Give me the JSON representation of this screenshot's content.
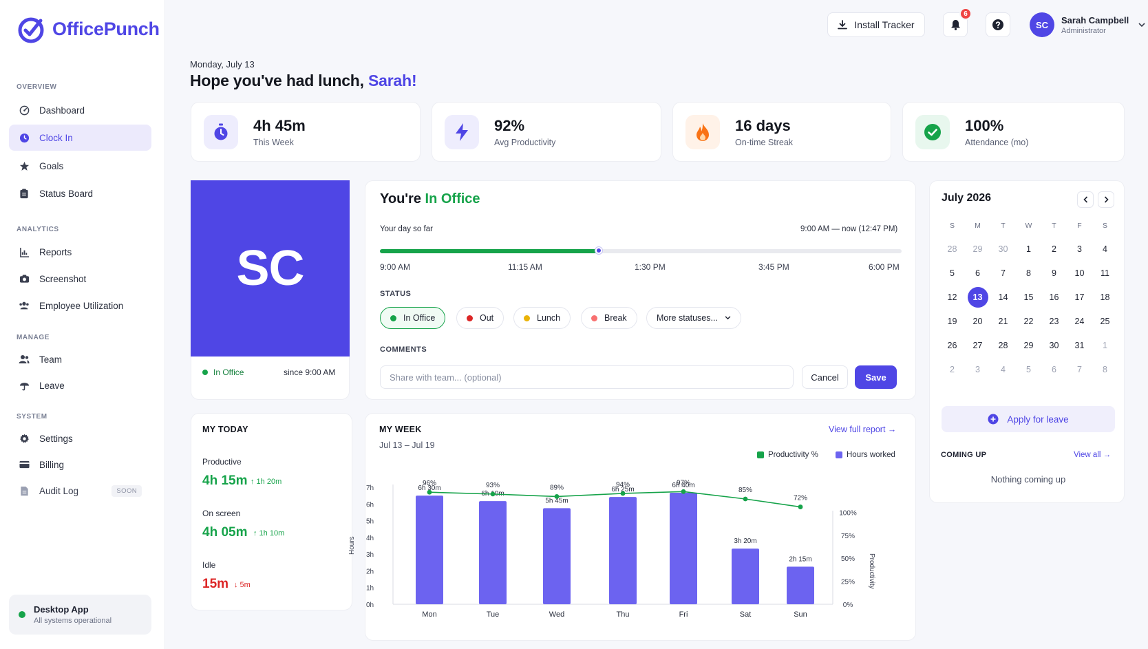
{
  "app": {
    "name": "OfficePunch",
    "brand_color": "#4f46e5"
  },
  "sidebar": {
    "sections": [
      {
        "label": "OVERVIEW",
        "items": [
          {
            "label": "Dashboard",
            "icon": "dashboard-gauge-icon",
            "active": false
          },
          {
            "label": "Clock In",
            "icon": "clock-icon",
            "active": true
          },
          {
            "label": "Goals",
            "icon": "star-icon",
            "active": false
          },
          {
            "label": "Status Board",
            "icon": "clipboard-icon",
            "active": false
          }
        ]
      },
      {
        "label": "ANALYTICS",
        "items": [
          {
            "label": "Reports",
            "icon": "bar-chart-icon"
          },
          {
            "label": "Screenshot",
            "icon": "camera-icon"
          },
          {
            "label": "Employee Utilization",
            "icon": "users-icon"
          }
        ]
      },
      {
        "label": "MANAGE",
        "items": [
          {
            "label": "Team",
            "icon": "team-icon"
          },
          {
            "label": "Leave",
            "icon": "umbrella-icon"
          }
        ]
      },
      {
        "label": "SYSTEM",
        "items": [
          {
            "label": "Settings",
            "icon": "gear-icon"
          },
          {
            "label": "Billing",
            "icon": "credit-card-icon"
          },
          {
            "label": "Audit Log",
            "icon": "document-icon",
            "badge": "SOON"
          }
        ]
      }
    ],
    "desktop_app": {
      "title": "Desktop App",
      "status": "All systems operational"
    }
  },
  "header": {
    "install_label": "Install Tracker",
    "notification_count": "6",
    "user": {
      "initials": "SC",
      "name": "Sarah Campbell",
      "role": "Administrator"
    }
  },
  "greeting": {
    "date": "Monday, July 13",
    "text": "Hope you've had lunch, ",
    "name": "Sarah!"
  },
  "stats": [
    {
      "value": "4h 45m",
      "label": "This Week",
      "icon": "stopwatch-icon",
      "color": "#4f46e5",
      "bg": "#eeedfd"
    },
    {
      "value": "92%",
      "label": "Avg Productivity",
      "icon": "lightning-icon",
      "color": "#4f46e5",
      "bg": "#eeedfd"
    },
    {
      "value": "16 days",
      "label": "On-time Streak",
      "icon": "flame-icon",
      "color": "#f97316",
      "bg": "#fff2e8"
    },
    {
      "value": "100%",
      "label": "Attendance (mo)",
      "icon": "check-circle-icon",
      "color": "#16a34a",
      "bg": "#e8f7ee"
    }
  ],
  "profile": {
    "initials": "SC",
    "status": "In Office",
    "since": "since 9:00 AM"
  },
  "office": {
    "title_prefix": "You're ",
    "title_status": "In Office",
    "day_label": "Your day so far",
    "range": "9:00 AM — now (12:47 PM)",
    "progress": 0.42,
    "ticks": [
      "9:00 AM",
      "11:15 AM",
      "1:30 PM",
      "3:45 PM",
      "6:00 PM"
    ],
    "status_label": "STATUS",
    "statuses": [
      {
        "label": "In Office",
        "color": "#16a34a",
        "selected": true
      },
      {
        "label": "Out",
        "color": "#dc2626",
        "selected": false
      },
      {
        "label": "Lunch",
        "color": "#eab308",
        "selected": false
      },
      {
        "label": "Break",
        "color": "#f87171",
        "selected": false
      }
    ],
    "more_statuses": "More statuses...",
    "comments_label": "COMMENTS",
    "comment_placeholder": "Share with team... (optional)",
    "cancel_label": "Cancel",
    "save_label": "Save"
  },
  "calendar": {
    "title": "July 2026",
    "weekdays": [
      "S",
      "M",
      "T",
      "W",
      "T",
      "F",
      "S"
    ],
    "weeks": [
      [
        {
          "d": "28",
          "out": true
        },
        {
          "d": "29",
          "out": true
        },
        {
          "d": "30",
          "out": true
        },
        {
          "d": "1"
        },
        {
          "d": "2"
        },
        {
          "d": "3"
        },
        {
          "d": "4"
        }
      ],
      [
        {
          "d": "5"
        },
        {
          "d": "6"
        },
        {
          "d": "7"
        },
        {
          "d": "8"
        },
        {
          "d": "9"
        },
        {
          "d": "10"
        },
        {
          "d": "11"
        }
      ],
      [
        {
          "d": "12"
        },
        {
          "d": "13",
          "today": true
        },
        {
          "d": "14"
        },
        {
          "d": "15"
        },
        {
          "d": "16"
        },
        {
          "d": "17"
        },
        {
          "d": "18"
        }
      ],
      [
        {
          "d": "19"
        },
        {
          "d": "20"
        },
        {
          "d": "21"
        },
        {
          "d": "22"
        },
        {
          "d": "23"
        },
        {
          "d": "24"
        },
        {
          "d": "25"
        }
      ],
      [
        {
          "d": "26"
        },
        {
          "d": "27"
        },
        {
          "d": "28"
        },
        {
          "d": "29"
        },
        {
          "d": "30"
        },
        {
          "d": "31"
        },
        {
          "d": "1",
          "out": true
        }
      ],
      [
        {
          "d": "2",
          "out": true
        },
        {
          "d": "3",
          "out": true
        },
        {
          "d": "4",
          "out": true
        },
        {
          "d": "5",
          "out": true
        },
        {
          "d": "6",
          "out": true
        },
        {
          "d": "7",
          "out": true
        },
        {
          "d": "8",
          "out": true
        }
      ]
    ],
    "apply_leave": "Apply for leave",
    "coming_up": "COMING UP",
    "view_all": "View all →",
    "nothing": "Nothing coming up"
  },
  "my_today": {
    "title": "MY TODAY",
    "rows": [
      {
        "label": "Productive",
        "value": "4h 15m",
        "delta": "↑ 1h 20m",
        "color": "#16a34a"
      },
      {
        "label": "On screen",
        "value": "4h 05m",
        "delta": "↑ 1h 10m",
        "color": "#16a34a"
      },
      {
        "label": "Idle",
        "value": "15m",
        "delta": "↓ 5m",
        "color": "#dc2626"
      }
    ]
  },
  "my_week": {
    "title": "MY WEEK",
    "range": "Jul 13 – Jul 19",
    "full_report": "View full report →",
    "legend": [
      {
        "label": "Productivity %",
        "color": "#16a34a"
      },
      {
        "label": "Hours worked",
        "color": "#6c63f0"
      }
    ]
  },
  "chart_data": {
    "type": "bar",
    "categories": [
      "Mon",
      "Tue",
      "Wed",
      "Thu",
      "Fri",
      "Sat",
      "Sun"
    ],
    "series": [
      {
        "name": "Hours worked",
        "type": "bar",
        "axis": "left",
        "values": [
          6.5,
          6.17,
          5.75,
          6.42,
          6.67,
          3.33,
          2.25
        ],
        "labels": [
          "6h 30m",
          "6h 10m",
          "5h 45m",
          "6h 25m",
          "6h 40m",
          "3h 20m",
          "2h 15m"
        ],
        "color": "#6c63f0"
      },
      {
        "name": "Productivity %",
        "type": "line",
        "axis": "right",
        "values": [
          96,
          93,
          89,
          94,
          97,
          85,
          72
        ],
        "labels": [
          "96%",
          "93%",
          "89%",
          "94%",
          "97%",
          "85%",
          "72%"
        ],
        "color": "#16a34a"
      }
    ],
    "ylabel": "Hours",
    "y2label": "Productivity",
    "ylim": [
      0,
      7
    ],
    "yticks": [
      "0h",
      "1h",
      "2h",
      "3h",
      "4h",
      "5h",
      "6h",
      "7h"
    ],
    "y2ticks": [
      "0%",
      "25%",
      "50%",
      "75%",
      "100%"
    ],
    "grid": false
  }
}
